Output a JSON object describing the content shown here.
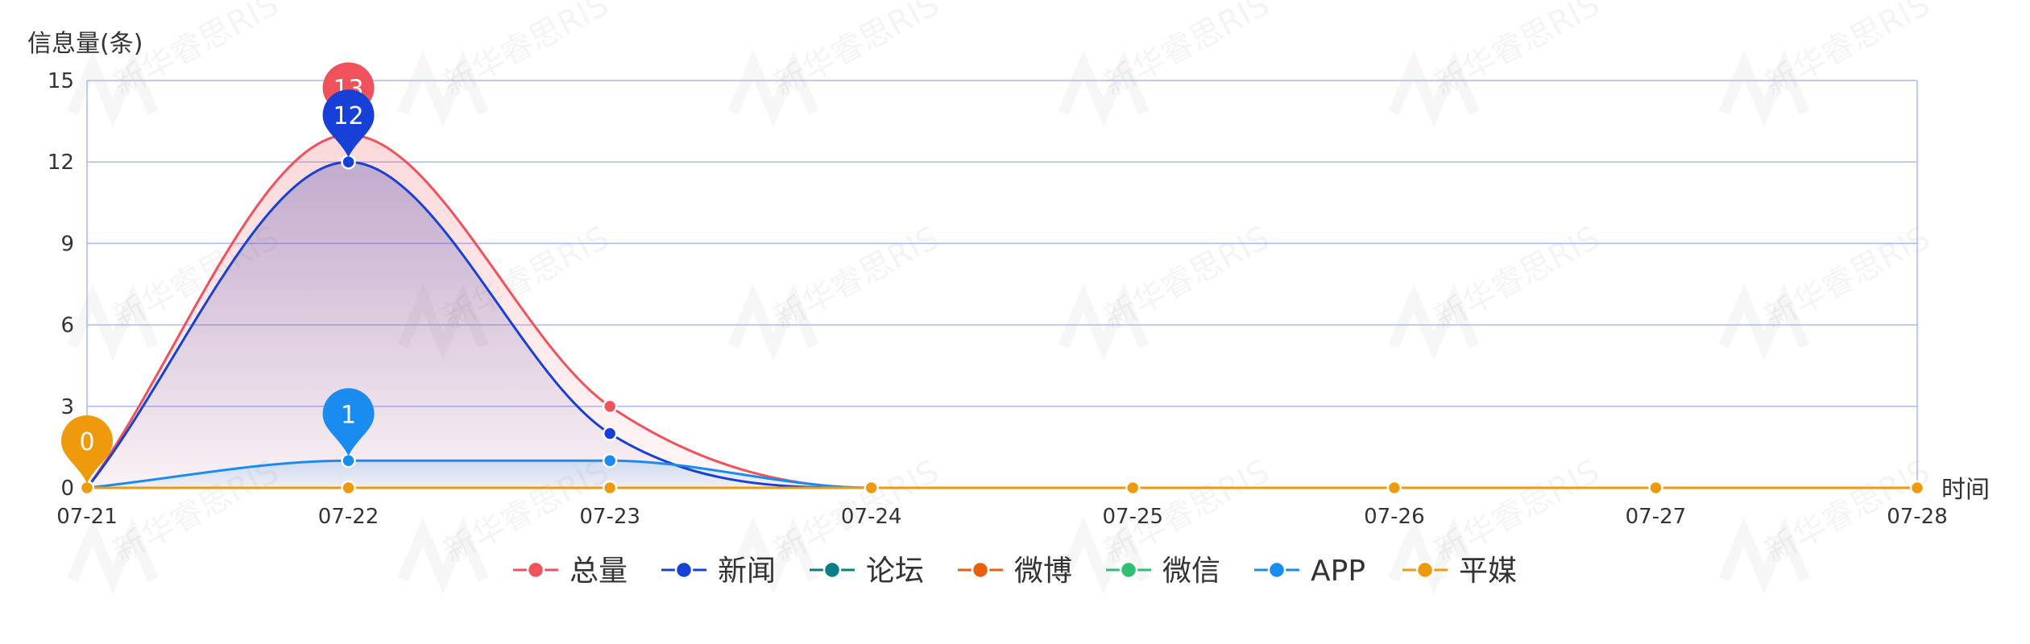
{
  "chart_data": {
    "type": "line",
    "categories": [
      "07-21",
      "07-22",
      "07-23",
      "07-24",
      "07-25",
      "07-26",
      "07-27",
      "07-28"
    ],
    "ylabel": "信息量(条)",
    "xlabel": "时间",
    "ylim": [
      0,
      15
    ],
    "yticks": [
      0,
      3,
      6,
      9,
      12,
      15
    ],
    "grid": true,
    "smooth": true,
    "legend_position": "bottom-center",
    "series": [
      {
        "name": "总量",
        "color": "#f0525c",
        "values": [
          0,
          13,
          3,
          0,
          0,
          0,
          0,
          0
        ],
        "area": true,
        "marker_label": "13"
      },
      {
        "name": "新闻",
        "color": "#1740d6",
        "values": [
          0,
          12,
          2,
          0,
          0,
          0,
          0,
          0
        ],
        "area": true,
        "marker_label": "12"
      },
      {
        "name": "论坛",
        "color": "#0a7d86",
        "values": [
          0,
          0,
          0,
          0,
          0,
          0,
          0,
          0
        ],
        "area": false
      },
      {
        "name": "微博",
        "color": "#e8600e",
        "values": [
          0,
          0,
          0,
          0,
          0,
          0,
          0,
          0
        ],
        "area": false
      },
      {
        "name": "微信",
        "color": "#2fbf71",
        "values": [
          0,
          0,
          0,
          0,
          0,
          0,
          0,
          0
        ],
        "area": false
      },
      {
        "name": "APP",
        "color": "#1a8cf0",
        "values": [
          0,
          1,
          1,
          0,
          0,
          0,
          0,
          0
        ],
        "area": true,
        "marker_label": "1"
      },
      {
        "name": "平媒",
        "color": "#ee9a0c",
        "values": [
          0,
          0,
          0,
          0,
          0,
          0,
          0,
          0
        ],
        "area": false,
        "marker_label": "0"
      }
    ],
    "watermark": "新华睿思RIS"
  }
}
